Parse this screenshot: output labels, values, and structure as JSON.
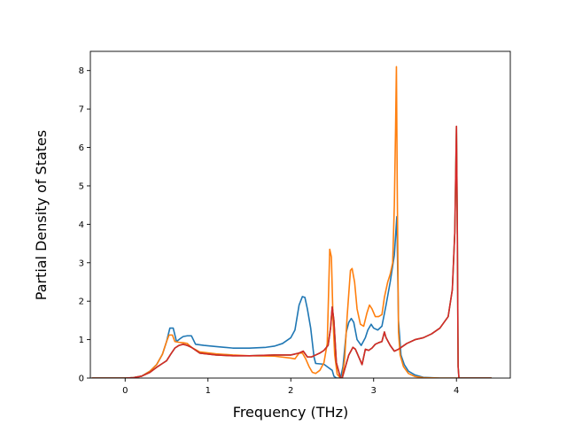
{
  "chart_data": {
    "type": "line",
    "title": "",
    "xlabel": "Frequency (THz)",
    "ylabel": "Partial Density of States",
    "xlim": [
      -0.42,
      4.65
    ],
    "ylim": [
      0,
      8.5
    ],
    "xticks": [
      0,
      1,
      2,
      3,
      4
    ],
    "yticks": [
      0,
      1,
      2,
      3,
      4,
      5,
      6,
      7,
      8
    ],
    "grid": false,
    "legend": "none",
    "series": [
      {
        "color": "#1f77b4",
        "x": [
          -0.4,
          0.0,
          0.1,
          0.2,
          0.3,
          0.38,
          0.45,
          0.5,
          0.54,
          0.58,
          0.62,
          0.66,
          0.7,
          0.75,
          0.8,
          0.85,
          0.95,
          1.1,
          1.3,
          1.5,
          1.7,
          1.8,
          1.9,
          2.0,
          2.05,
          2.1,
          2.14,
          2.17,
          2.2,
          2.24,
          2.28,
          2.3,
          2.4,
          2.45,
          2.5,
          2.52,
          2.55,
          2.6,
          2.63,
          2.67,
          2.7,
          2.73,
          2.76,
          2.8,
          2.85,
          2.9,
          2.93,
          2.97,
          3.0,
          3.05,
          3.1,
          3.15,
          3.2,
          3.25,
          3.28,
          3.3,
          3.33,
          3.37,
          3.42,
          3.5,
          3.6,
          3.8,
          4.0,
          4.42
        ],
        "y": [
          0,
          0,
          0.01,
          0.05,
          0.18,
          0.35,
          0.62,
          0.95,
          1.3,
          1.3,
          0.95,
          1.02,
          1.08,
          1.1,
          1.1,
          0.88,
          0.85,
          0.82,
          0.78,
          0.78,
          0.8,
          0.83,
          0.9,
          1.05,
          1.25,
          1.9,
          2.12,
          2.1,
          1.8,
          1.3,
          0.55,
          0.38,
          0.36,
          0.28,
          0.2,
          0.05,
          0,
          0,
          0.3,
          1.2,
          1.45,
          1.55,
          1.45,
          1.0,
          0.85,
          1.05,
          1.25,
          1.4,
          1.3,
          1.25,
          1.35,
          1.9,
          2.5,
          3.2,
          4.2,
          1.5,
          0.6,
          0.35,
          0.18,
          0.08,
          0.02,
          0,
          0,
          0
        ]
      },
      {
        "color": "#ff7f0e",
        "x": [
          -0.4,
          0.0,
          0.1,
          0.2,
          0.3,
          0.38,
          0.45,
          0.5,
          0.53,
          0.57,
          0.6,
          0.65,
          0.7,
          0.75,
          0.8,
          0.9,
          1.1,
          1.3,
          1.5,
          1.8,
          2.0,
          2.05,
          2.1,
          2.14,
          2.18,
          2.22,
          2.26,
          2.3,
          2.35,
          2.4,
          2.44,
          2.47,
          2.49,
          2.51,
          2.53,
          2.56,
          2.6,
          2.62,
          2.65,
          2.68,
          2.72,
          2.74,
          2.77,
          2.8,
          2.84,
          2.88,
          2.92,
          2.95,
          2.98,
          3.02,
          3.06,
          3.1,
          3.13,
          3.17,
          3.2,
          3.23,
          3.25,
          3.265,
          3.275,
          3.285,
          3.3,
          3.32,
          3.36,
          3.42,
          3.5,
          3.6,
          3.8,
          4.0,
          4.42
        ],
        "y": [
          0,
          0,
          0.01,
          0.05,
          0.18,
          0.35,
          0.62,
          0.95,
          1.12,
          1.12,
          0.95,
          0.93,
          0.92,
          0.9,
          0.8,
          0.68,
          0.63,
          0.6,
          0.58,
          0.57,
          0.52,
          0.5,
          0.65,
          0.65,
          0.5,
          0.3,
          0.15,
          0.12,
          0.2,
          0.4,
          0.9,
          3.35,
          3.15,
          1.5,
          0.6,
          0.1,
          0,
          0,
          0.5,
          1.6,
          2.8,
          2.85,
          2.5,
          1.8,
          1.4,
          1.35,
          1.7,
          1.9,
          1.8,
          1.6,
          1.6,
          1.65,
          2.1,
          2.5,
          2.7,
          3.0,
          4.5,
          6.5,
          8.1,
          5.0,
          1.2,
          0.6,
          0.3,
          0.12,
          0.04,
          0.01,
          0,
          0,
          0
        ]
      },
      {
        "color": "#2ca02c",
        "x": [
          -0.4,
          0.0,
          0.1,
          0.2,
          0.3,
          0.38,
          0.45,
          0.5,
          0.55,
          0.6,
          0.65,
          0.7,
          0.75,
          0.8,
          0.9,
          1.1,
          1.3,
          1.5,
          1.8,
          2.0,
          2.1,
          2.15,
          2.2,
          2.25,
          2.3,
          2.35,
          2.4,
          2.45,
          2.48,
          2.5,
          2.52,
          2.55,
          2.6,
          2.62,
          2.66,
          2.7,
          2.75,
          2.78,
          2.82,
          2.86,
          2.9,
          2.94,
          2.98,
          3.02,
          3.06,
          3.1,
          3.13,
          3.15,
          3.2,
          3.25,
          3.3,
          3.4,
          3.5,
          3.6,
          3.7,
          3.8,
          3.9,
          3.95,
          3.98,
          4.0,
          4.01,
          4.02,
          4.03,
          4.42
        ],
        "y": [
          0,
          0,
          0.01,
          0.05,
          0.15,
          0.28,
          0.38,
          0.45,
          0.62,
          0.78,
          0.85,
          0.88,
          0.85,
          0.8,
          0.65,
          0.6,
          0.58,
          0.58,
          0.6,
          0.6,
          0.65,
          0.7,
          0.55,
          0.55,
          0.6,
          0.65,
          0.72,
          0.85,
          1.3,
          1.85,
          1.5,
          0.4,
          0,
          0,
          0.3,
          0.6,
          0.8,
          0.75,
          0.55,
          0.35,
          0.75,
          0.72,
          0.78,
          0.88,
          0.92,
          0.95,
          1.2,
          1.05,
          0.85,
          0.7,
          0.75,
          0.9,
          1.0,
          1.05,
          1.15,
          1.3,
          1.6,
          2.3,
          3.8,
          6.55,
          4.0,
          0.3,
          0,
          0
        ]
      },
      {
        "color": "#d62728",
        "x": [
          -0.4,
          0.0,
          0.1,
          0.2,
          0.3,
          0.38,
          0.45,
          0.5,
          0.55,
          0.6,
          0.65,
          0.7,
          0.75,
          0.8,
          0.9,
          1.1,
          1.3,
          1.5,
          1.8,
          2.0,
          2.1,
          2.15,
          2.2,
          2.25,
          2.3,
          2.35,
          2.4,
          2.45,
          2.48,
          2.5,
          2.52,
          2.55,
          2.6,
          2.62,
          2.66,
          2.7,
          2.75,
          2.78,
          2.82,
          2.86,
          2.9,
          2.94,
          2.98,
          3.02,
          3.06,
          3.1,
          3.13,
          3.15,
          3.2,
          3.25,
          3.3,
          3.4,
          3.5,
          3.6,
          3.7,
          3.8,
          3.9,
          3.95,
          3.98,
          4.0,
          4.01,
          4.02,
          4.03,
          4.42
        ],
        "y": [
          0,
          0,
          0.01,
          0.05,
          0.15,
          0.28,
          0.38,
          0.45,
          0.62,
          0.78,
          0.85,
          0.88,
          0.85,
          0.8,
          0.65,
          0.6,
          0.58,
          0.58,
          0.6,
          0.6,
          0.65,
          0.7,
          0.55,
          0.55,
          0.6,
          0.65,
          0.72,
          0.85,
          1.3,
          1.85,
          1.5,
          0.4,
          0,
          0,
          0.3,
          0.6,
          0.8,
          0.75,
          0.55,
          0.35,
          0.75,
          0.72,
          0.78,
          0.88,
          0.92,
          0.95,
          1.2,
          1.05,
          0.85,
          0.7,
          0.75,
          0.9,
          1.0,
          1.05,
          1.15,
          1.3,
          1.6,
          2.3,
          3.8,
          6.55,
          4.0,
          0.3,
          0,
          0
        ]
      }
    ]
  }
}
